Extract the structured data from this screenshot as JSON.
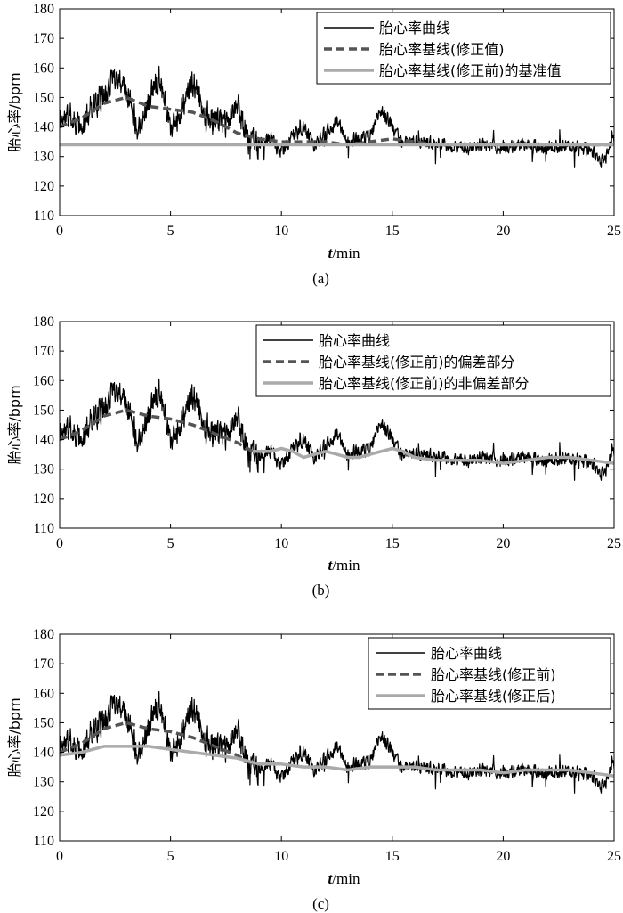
{
  "figure": {
    "background": "#ffffff"
  },
  "chart_data": [
    {
      "type": "line",
      "panel_label": "(a)",
      "xlabel_italic": "t",
      "xlabel_rest": "/min",
      "ylabel": "胎心率/bpm",
      "xlim": [
        0,
        25
      ],
      "ylim": [
        110,
        180
      ],
      "xticks": [
        0,
        5,
        10,
        15,
        20,
        25
      ],
      "yticks": [
        110,
        120,
        130,
        140,
        150,
        160,
        170,
        180
      ],
      "grid": false,
      "legend_position": "top-right",
      "series": [
        {
          "name": "胎心率曲线",
          "color": "#000000",
          "dash": "solid",
          "width": 1.2,
          "noise": true,
          "seed": 11,
          "x": [
            0,
            0.5,
            1,
            1.5,
            2,
            2.5,
            3,
            3.5,
            4,
            4.5,
            5,
            5.5,
            6,
            6.5,
            7,
            7.5,
            8,
            8.5,
            9,
            9.5,
            10,
            10.5,
            11,
            11.5,
            12,
            12.5,
            13,
            13.5,
            14,
            14.5,
            15,
            15.5,
            16,
            17,
            18,
            19,
            20,
            21,
            22,
            23,
            24,
            24.5,
            25
          ],
          "y": [
            142,
            144,
            140,
            148,
            150,
            158,
            154,
            140,
            148,
            158,
            140,
            146,
            155,
            145,
            142,
            140,
            148,
            136,
            134,
            136,
            131,
            137,
            140,
            134,
            138,
            142,
            135,
            136,
            137,
            146,
            140,
            134,
            136,
            134,
            133,
            134,
            133,
            134,
            133,
            134,
            132,
            128,
            136
          ]
        },
        {
          "name": "胎心率基线(修正值)",
          "color": "#555555",
          "dash": "dashed",
          "width": 3.5,
          "x": [
            0,
            1,
            2,
            3,
            4,
            5,
            6,
            7,
            8,
            9,
            10,
            11,
            12,
            13,
            14,
            15,
            16,
            17,
            18,
            19,
            20,
            21,
            22,
            23,
            24,
            25
          ],
          "y": [
            140,
            143,
            148,
            150,
            147,
            146,
            145,
            142,
            138,
            136,
            135,
            135,
            135,
            134,
            135,
            136,
            135,
            134,
            134,
            134,
            134,
            134,
            134,
            134,
            134,
            134
          ]
        },
        {
          "name": "胎心率基线(修正前)的基准值",
          "color": "#aaaaaa",
          "dash": "solid",
          "width": 3.5,
          "x": [
            0,
            25
          ],
          "y": [
            134,
            134
          ]
        }
      ]
    },
    {
      "type": "line",
      "panel_label": "(b)",
      "xlabel_italic": "t",
      "xlabel_rest": "/min",
      "ylabel": "胎心率/bpm",
      "xlim": [
        0,
        25
      ],
      "ylim": [
        110,
        180
      ],
      "xticks": [
        0,
        5,
        10,
        15,
        20,
        25
      ],
      "yticks": [
        110,
        120,
        130,
        140,
        150,
        160,
        170,
        180
      ],
      "grid": false,
      "legend_position": "top-right",
      "series": [
        {
          "name": "胎心率曲线",
          "color": "#000000",
          "dash": "solid",
          "width": 1.2,
          "noise": true,
          "seed": 11,
          "x": [
            0,
            0.5,
            1,
            1.5,
            2,
            2.5,
            3,
            3.5,
            4,
            4.5,
            5,
            5.5,
            6,
            6.5,
            7,
            7.5,
            8,
            8.5,
            9,
            9.5,
            10,
            10.5,
            11,
            11.5,
            12,
            12.5,
            13,
            13.5,
            14,
            14.5,
            15,
            15.5,
            16,
            17,
            18,
            19,
            20,
            21,
            22,
            23,
            24,
            24.5,
            25
          ],
          "y": [
            142,
            144,
            140,
            148,
            150,
            158,
            154,
            140,
            148,
            158,
            140,
            146,
            155,
            145,
            142,
            140,
            148,
            136,
            134,
            136,
            131,
            137,
            140,
            134,
            138,
            142,
            135,
            136,
            137,
            146,
            140,
            134,
            136,
            134,
            133,
            134,
            133,
            134,
            133,
            134,
            132,
            128,
            136
          ]
        },
        {
          "name": "胎心率基线(修正前)的偏差部分",
          "color": "#555555",
          "dash": "dashed",
          "width": 3.5,
          "x": [
            0,
            1,
            2,
            3,
            4,
            5,
            6,
            7,
            8,
            8.7
          ],
          "y": [
            140,
            143,
            148,
            150,
            148,
            147,
            145,
            142,
            139,
            136
          ]
        },
        {
          "name": "胎心率基线(修正前)的非偏差部分",
          "color": "#aaaaaa",
          "dash": "solid",
          "width": 3.5,
          "x": [
            8.7,
            9.5,
            10,
            10.5,
            11,
            11.5,
            12,
            12.5,
            13,
            13.5,
            14,
            14.5,
            15,
            15.5,
            16,
            17,
            18,
            19,
            20,
            21,
            22,
            23,
            24,
            25
          ],
          "y": [
            136,
            136,
            137,
            136,
            134,
            135,
            136,
            135,
            134,
            134,
            135,
            136,
            137,
            136,
            134,
            133,
            133,
            133,
            132,
            133,
            134,
            134,
            133,
            132
          ]
        }
      ]
    },
    {
      "type": "line",
      "panel_label": "(c)",
      "xlabel_italic": "t",
      "xlabel_rest": "/min",
      "ylabel": "胎心率/bpm",
      "xlim": [
        0,
        25
      ],
      "ylim": [
        110,
        180
      ],
      "xticks": [
        0,
        5,
        10,
        15,
        20,
        25
      ],
      "yticks": [
        110,
        120,
        130,
        140,
        150,
        160,
        170,
        180
      ],
      "grid": false,
      "legend_position": "top-right",
      "series": [
        {
          "name": "胎心率曲线",
          "color": "#000000",
          "dash": "solid",
          "width": 1.2,
          "noise": true,
          "seed": 11,
          "x": [
            0,
            0.5,
            1,
            1.5,
            2,
            2.5,
            3,
            3.5,
            4,
            4.5,
            5,
            5.5,
            6,
            6.5,
            7,
            7.5,
            8,
            8.5,
            9,
            9.5,
            10,
            10.5,
            11,
            11.5,
            12,
            12.5,
            13,
            13.5,
            14,
            14.5,
            15,
            15.5,
            16,
            17,
            18,
            19,
            20,
            21,
            22,
            23,
            24,
            24.5,
            25
          ],
          "y": [
            142,
            144,
            140,
            148,
            150,
            158,
            154,
            140,
            148,
            158,
            140,
            146,
            155,
            145,
            142,
            140,
            148,
            136,
            134,
            136,
            131,
            137,
            140,
            134,
            138,
            142,
            135,
            136,
            137,
            146,
            140,
            134,
            136,
            134,
            133,
            134,
            133,
            134,
            133,
            134,
            132,
            128,
            136
          ]
        },
        {
          "name": "胎心率基线(修正前)",
          "color": "#555555",
          "dash": "dashed",
          "width": 3.5,
          "x": [
            0,
            1,
            2,
            3,
            4,
            5,
            6,
            7,
            8,
            8.7
          ],
          "y": [
            140,
            143,
            148,
            150,
            148,
            147,
            145,
            142,
            139,
            136
          ]
        },
        {
          "name": "胎心率基线(修正后)",
          "color": "#aaaaaa",
          "dash": "solid",
          "width": 3.5,
          "x": [
            0,
            1,
            2,
            3,
            4,
            5,
            6,
            7,
            8,
            9,
            10,
            11,
            12,
            13,
            14,
            15,
            16,
            17,
            18,
            19,
            20,
            21,
            22,
            23,
            24,
            25
          ],
          "y": [
            139,
            140,
            142,
            142,
            142,
            141,
            140,
            139,
            138,
            136,
            136,
            135,
            135,
            134,
            135,
            135,
            135,
            134,
            134,
            134,
            133,
            134,
            134,
            134,
            133,
            132
          ]
        }
      ]
    }
  ]
}
